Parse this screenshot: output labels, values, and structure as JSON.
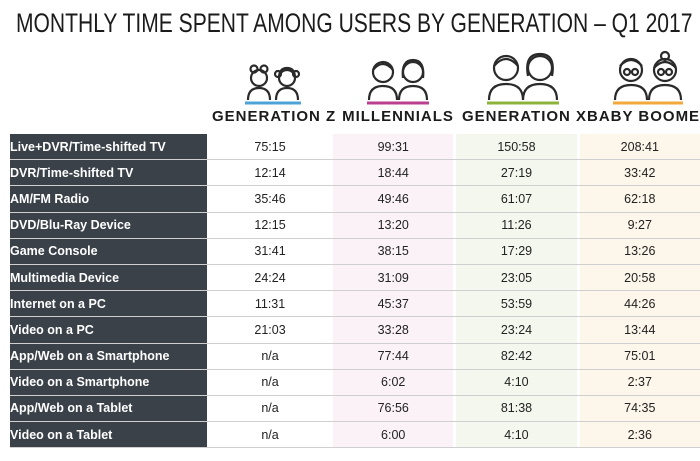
{
  "title": "MONTHLY TIME SPENT AMONG USERS BY GENERATION – Q1 2017",
  "colors": {
    "header_row_bg": "#3a4149",
    "gen_z": "#4ea3d6",
    "millennials": "#b9408f",
    "gen_x": "#8cb43c",
    "baby_boomers": "#f2a93b"
  },
  "generations": [
    {
      "label": "GENERATION Z",
      "icon": "two-children-icon",
      "color": "#4ea3d6"
    },
    {
      "label": "MILLENNIALS",
      "icon": "two-young-adults-icon",
      "color": "#b9408f"
    },
    {
      "label": "GENERATION X",
      "icon": "two-adults-icon",
      "color": "#8cb43c"
    },
    {
      "label": "BABY BOOMERS",
      "icon": "two-seniors-with-glasses-icon",
      "color": "#f2a93b"
    }
  ],
  "chart_data": {
    "type": "table",
    "title": "MONTHLY TIME SPENT AMONG USERS BY GENERATION – Q1 2017",
    "columns": [
      "GENERATION Z",
      "MILLENNIALS",
      "GENERATION X",
      "BABY BOOMERS"
    ],
    "rows": [
      {
        "label": "Live+DVR/Time-shifted TV",
        "values": [
          "75:15",
          "99:31",
          "150:58",
          "208:41"
        ]
      },
      {
        "label": "DVR/Time-shifted TV",
        "values": [
          "12:14",
          "18:44",
          "27:19",
          "33:42"
        ]
      },
      {
        "label": "AM/FM Radio",
        "values": [
          "35:46",
          "49:46",
          "61:07",
          "62:18"
        ]
      },
      {
        "label": "DVD/Blu-Ray Device",
        "values": [
          "12:15",
          "13:20",
          "11:26",
          "9:27"
        ]
      },
      {
        "label": "Game Console",
        "values": [
          "31:41",
          "38:15",
          "17:29",
          "13:26"
        ]
      },
      {
        "label": "Multimedia Device",
        "values": [
          "24:24",
          "31:09",
          "23:05",
          "20:58"
        ]
      },
      {
        "label": "Internet on a PC",
        "values": [
          "11:31",
          "45:37",
          "53:59",
          "44:26"
        ]
      },
      {
        "label": "Video on a PC",
        "values": [
          "21:03",
          "33:28",
          "23:24",
          "13:44"
        ]
      },
      {
        "label": "App/Web on a Smartphone",
        "values": [
          "n/a",
          "77:44",
          "82:42",
          "75:01"
        ]
      },
      {
        "label": "Video on a Smartphone",
        "values": [
          "n/a",
          "6:02",
          "4:10",
          "2:37"
        ]
      },
      {
        "label": "App/Web on a Tablet",
        "values": [
          "n/a",
          "76:56",
          "81:38",
          "74:35"
        ]
      },
      {
        "label": "Video on a Tablet",
        "values": [
          "n/a",
          "6:00",
          "4:10",
          "2:36"
        ]
      }
    ]
  }
}
